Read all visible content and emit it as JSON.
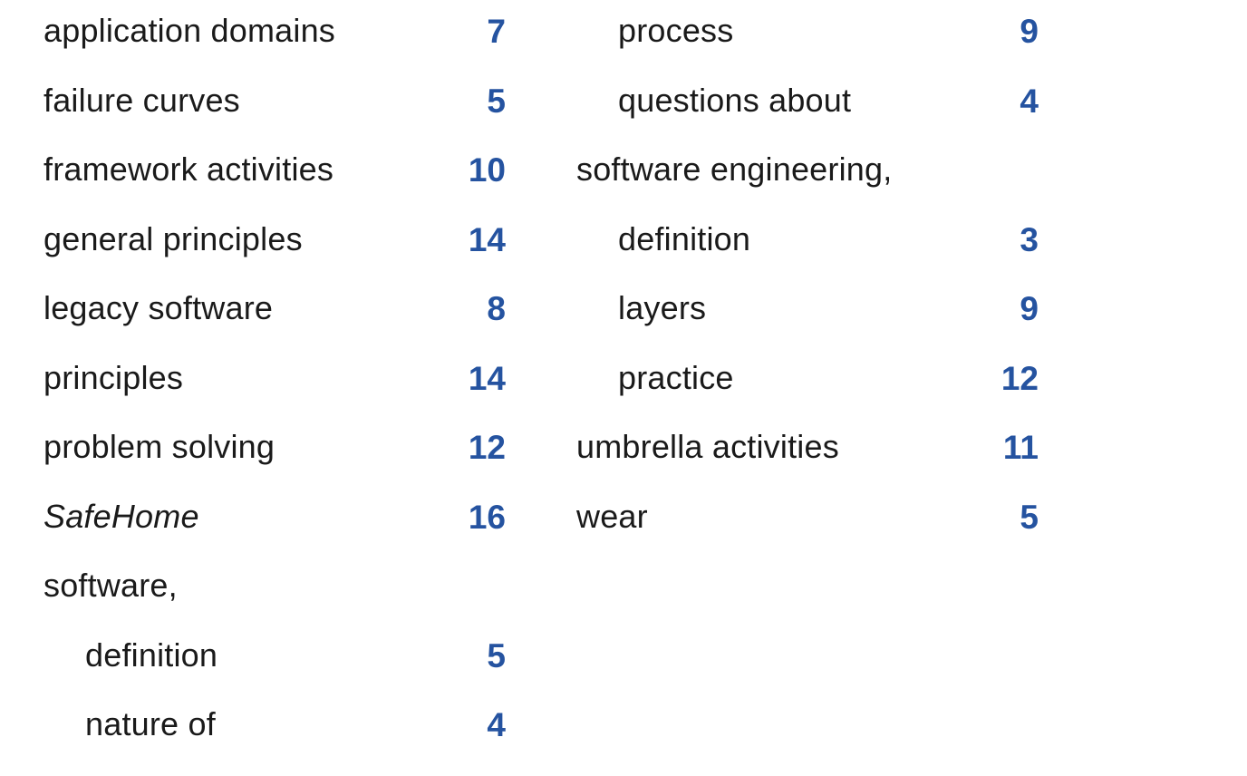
{
  "index": {
    "left_column": [
      {
        "term": "application domains",
        "page": "7",
        "sub": false,
        "italic": false
      },
      {
        "term": "failure curves",
        "page": "5",
        "sub": false,
        "italic": false
      },
      {
        "term": "framework activities",
        "page": "10",
        "sub": false,
        "italic": false
      },
      {
        "term": "general principles",
        "page": "14",
        "sub": false,
        "italic": false
      },
      {
        "term": "legacy software",
        "page": "8",
        "sub": false,
        "italic": false
      },
      {
        "term": "principles",
        "page": "14",
        "sub": false,
        "italic": false
      },
      {
        "term": "problem solving",
        "page": "12",
        "sub": false,
        "italic": false
      },
      {
        "term": "SafeHome",
        "page": "16",
        "sub": false,
        "italic": true
      },
      {
        "term": "software,",
        "page": "",
        "sub": false,
        "italic": false
      },
      {
        "term": "definition",
        "page": "5",
        "sub": true,
        "italic": false
      },
      {
        "term": "nature of",
        "page": "4",
        "sub": true,
        "italic": false
      }
    ],
    "right_column": [
      {
        "term": "process",
        "page": "9",
        "sub": true,
        "italic": false
      },
      {
        "term": "questions about",
        "page": "4",
        "sub": true,
        "italic": false
      },
      {
        "term": "software engineering,",
        "page": "",
        "sub": false,
        "italic": false
      },
      {
        "term": "definition",
        "page": "3",
        "sub": true,
        "italic": false
      },
      {
        "term": "layers",
        "page": "9",
        "sub": true,
        "italic": false
      },
      {
        "term": "practice",
        "page": "12",
        "sub": true,
        "italic": false
      },
      {
        "term": "umbrella activities",
        "page": "11",
        "sub": false,
        "italic": false
      },
      {
        "term": "wear",
        "page": "5",
        "sub": false,
        "italic": false
      }
    ],
    "colors": {
      "page_number": "#2553a0",
      "text": "#1a1a1a"
    }
  }
}
